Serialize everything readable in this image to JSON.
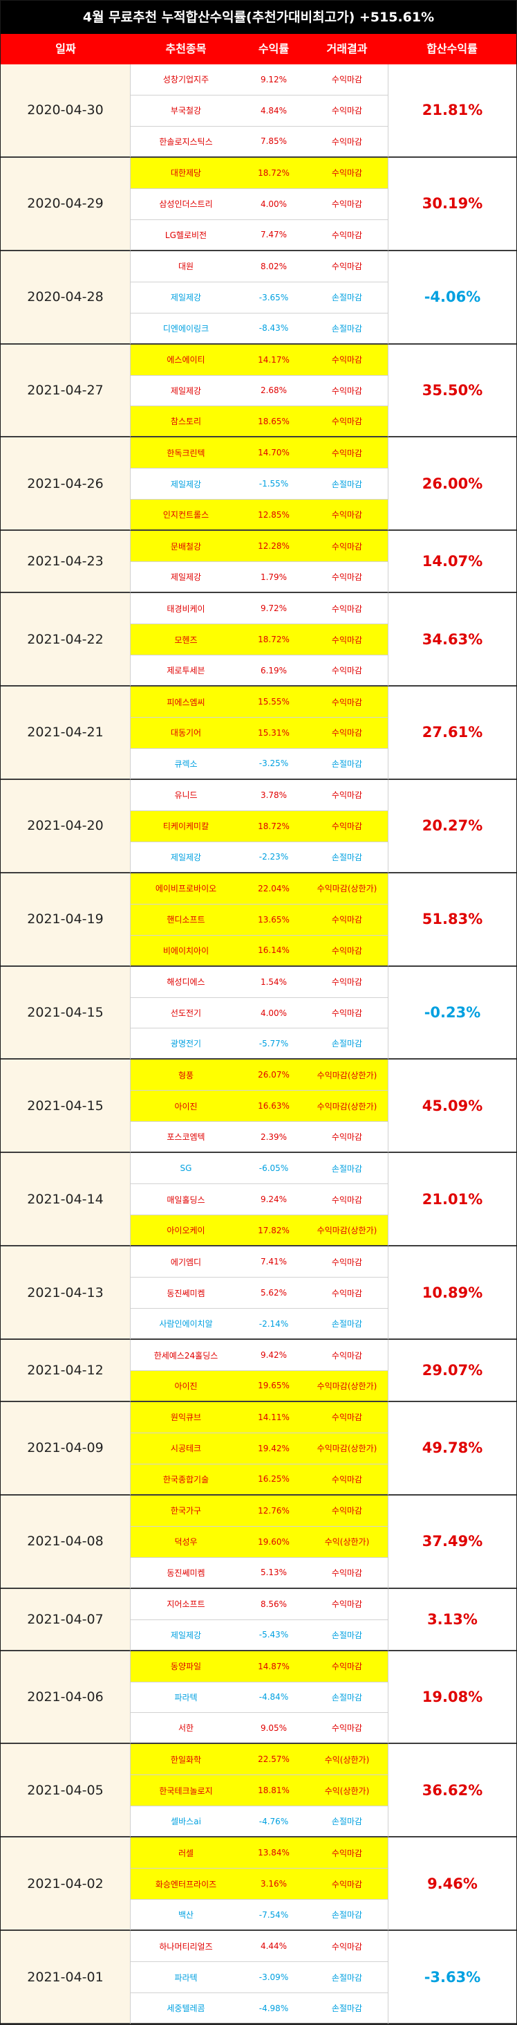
{
  "title": "4월 무료추천 누적합산수익률(추천가대비최고가) +515.61%",
  "headers": [
    "일짜",
    "추천종목",
    "수익률",
    "거래결과",
    "합산수익률"
  ],
  "colors": {
    "red": "#e00000",
    "blue": "#00a0e0",
    "highlight": "#ffff00",
    "header": "#ff0000",
    "date_bg": "#fdf6e6"
  },
  "groups": [
    {
      "date": "2020-04-30",
      "total": "21.81%",
      "total_color": "red",
      "rows": [
        {
          "stock": "성창기업지주",
          "rate": "9.12%",
          "result": "수익마감",
          "color": "red",
          "hl": false
        },
        {
          "stock": "부국철강",
          "rate": "4.84%",
          "result": "수익마감",
          "color": "red",
          "hl": false
        },
        {
          "stock": "한솔로지스틱스",
          "rate": "7.85%",
          "result": "수익마감",
          "color": "red",
          "hl": false
        }
      ]
    },
    {
      "date": "2020-04-29",
      "total": "30.19%",
      "total_color": "red",
      "rows": [
        {
          "stock": "대한제당",
          "rate": "18.72%",
          "result": "수익마감",
          "color": "red",
          "hl": true
        },
        {
          "stock": "삼성인더스트리",
          "rate": "4.00%",
          "result": "수익마감",
          "color": "red",
          "hl": false
        },
        {
          "stock": "LG헬로비전",
          "rate": "7.47%",
          "result": "수익마감",
          "color": "red",
          "hl": false
        }
      ]
    },
    {
      "date": "2020-04-28",
      "total": "-4.06%",
      "total_color": "blue",
      "rows": [
        {
          "stock": "대원",
          "rate": "8.02%",
          "result": "수익마감",
          "color": "red",
          "hl": false
        },
        {
          "stock": "제일제강",
          "rate": "-3.65%",
          "result": "손절마감",
          "color": "blue",
          "hl": false
        },
        {
          "stock": "디엔에이링크",
          "rate": "-8.43%",
          "result": "손절마감",
          "color": "blue",
          "hl": false
        }
      ]
    },
    {
      "date": "2021-04-27",
      "total": "35.50%",
      "total_color": "red",
      "rows": [
        {
          "stock": "에스에이티",
          "rate": "14.17%",
          "result": "수익마감",
          "color": "red",
          "hl": true
        },
        {
          "stock": "제일제강",
          "rate": "2.68%",
          "result": "수익마감",
          "color": "red",
          "hl": false
        },
        {
          "stock": "참스토리",
          "rate": "18.65%",
          "result": "수익마감",
          "color": "red",
          "hl": true
        }
      ]
    },
    {
      "date": "2021-04-26",
      "total": "26.00%",
      "total_color": "red",
      "rows": [
        {
          "stock": "한독크린텍",
          "rate": "14.70%",
          "result": "수익마감",
          "color": "red",
          "hl": true
        },
        {
          "stock": "제일제강",
          "rate": "-1.55%",
          "result": "손절마감",
          "color": "blue",
          "hl": false
        },
        {
          "stock": "인지컨트롤스",
          "rate": "12.85%",
          "result": "수익마감",
          "color": "red",
          "hl": true
        }
      ]
    },
    {
      "date": "2021-04-23",
      "total": "14.07%",
      "total_color": "red",
      "rows": [
        {
          "stock": "문배철강",
          "rate": "12.28%",
          "result": "수익마감",
          "color": "red",
          "hl": true
        },
        {
          "stock": "제일제강",
          "rate": "1.79%",
          "result": "수익마감",
          "color": "red",
          "hl": false
        }
      ]
    },
    {
      "date": "2021-04-22",
      "total": "34.63%",
      "total_color": "red",
      "rows": [
        {
          "stock": "태경비케이",
          "rate": "9.72%",
          "result": "수익마감",
          "color": "red",
          "hl": false
        },
        {
          "stock": "모헨즈",
          "rate": "18.72%",
          "result": "수익마감",
          "color": "red",
          "hl": true
        },
        {
          "stock": "제로투세븐",
          "rate": "6.19%",
          "result": "수익마감",
          "color": "red",
          "hl": false
        }
      ]
    },
    {
      "date": "2021-04-21",
      "total": "27.61%",
      "total_color": "red",
      "rows": [
        {
          "stock": "피에스엠씨",
          "rate": "15.55%",
          "result": "수익마감",
          "color": "red",
          "hl": true
        },
        {
          "stock": "대동기어",
          "rate": "15.31%",
          "result": "수익마감",
          "color": "red",
          "hl": true
        },
        {
          "stock": "큐렉소",
          "rate": "-3.25%",
          "result": "손절마감",
          "color": "blue",
          "hl": false
        }
      ]
    },
    {
      "date": "2021-04-20",
      "total": "20.27%",
      "total_color": "red",
      "rows": [
        {
          "stock": "유니드",
          "rate": "3.78%",
          "result": "수익마감",
          "color": "red",
          "hl": false
        },
        {
          "stock": "티케이케미칼",
          "rate": "18.72%",
          "result": "수익마감",
          "color": "red",
          "hl": true
        },
        {
          "stock": "제일제강",
          "rate": "-2.23%",
          "result": "손절마감",
          "color": "blue",
          "hl": false
        }
      ]
    },
    {
      "date": "2021-04-19",
      "total": "51.83%",
      "total_color": "red",
      "rows": [
        {
          "stock": "에이비프로바이오",
          "rate": "22.04%",
          "result": "수익마감(상한가)",
          "color": "red",
          "hl": true
        },
        {
          "stock": "핸디소프트",
          "rate": "13.65%",
          "result": "수익마감",
          "color": "red",
          "hl": true
        },
        {
          "stock": "비에이치아이",
          "rate": "16.14%",
          "result": "수익마감",
          "color": "red",
          "hl": true
        }
      ]
    },
    {
      "date": "2021-04-15",
      "total": "-0.23%",
      "total_color": "blue",
      "rows": [
        {
          "stock": "해성디에스",
          "rate": "1.54%",
          "result": "수익마감",
          "color": "red",
          "hl": false
        },
        {
          "stock": "선도전기",
          "rate": "4.00%",
          "result": "수익마감",
          "color": "red",
          "hl": false
        },
        {
          "stock": "광명전기",
          "rate": "-5.77%",
          "result": "손절마감",
          "color": "blue",
          "hl": false
        }
      ]
    },
    {
      "date": "2021-04-15",
      "total": "45.09%",
      "total_color": "red",
      "rows": [
        {
          "stock": "형풍",
          "rate": "26.07%",
          "result": "수익마감(상한가)",
          "color": "red",
          "hl": true
        },
        {
          "stock": "아이진",
          "rate": "16.63%",
          "result": "수익마감(상한가)",
          "color": "red",
          "hl": true
        },
        {
          "stock": "포스코엠텍",
          "rate": "2.39%",
          "result": "수익마감",
          "color": "red",
          "hl": false
        }
      ]
    },
    {
      "date": "2021-04-14",
      "total": "21.01%",
      "total_color": "red",
      "rows": [
        {
          "stock": "SG",
          "rate": "-6.05%",
          "result": "손절마감",
          "color": "blue",
          "hl": false
        },
        {
          "stock": "매일홀딩스",
          "rate": "9.24%",
          "result": "수익마감",
          "color": "red",
          "hl": false
        },
        {
          "stock": "아이오케이",
          "rate": "17.82%",
          "result": "수익마감(상한가)",
          "color": "red",
          "hl": true
        }
      ]
    },
    {
      "date": "2021-04-13",
      "total": "10.89%",
      "total_color": "red",
      "rows": [
        {
          "stock": "에기엠디",
          "rate": "7.41%",
          "result": "수익마감",
          "color": "red",
          "hl": false
        },
        {
          "stock": "동진쎄미켐",
          "rate": "5.62%",
          "result": "수익마감",
          "color": "red",
          "hl": false
        },
        {
          "stock": "사람인에이치알",
          "rate": "-2.14%",
          "result": "손절마감",
          "color": "blue",
          "hl": false
        }
      ]
    },
    {
      "date": "2021-04-12",
      "total": "29.07%",
      "total_color": "red",
      "rows": [
        {
          "stock": "한세예스24홀딩스",
          "rate": "9.42%",
          "result": "수익마감",
          "color": "red",
          "hl": false
        },
        {
          "stock": "아이진",
          "rate": "19.65%",
          "result": "수익마감(상한가)",
          "color": "red",
          "hl": true
        }
      ]
    },
    {
      "date": "2021-04-09",
      "total": "49.78%",
      "total_color": "red",
      "rows": [
        {
          "stock": "원익큐브",
          "rate": "14.11%",
          "result": "수익마감",
          "color": "red",
          "hl": true
        },
        {
          "stock": "시공테크",
          "rate": "19.42%",
          "result": "수익마감(상한가)",
          "color": "red",
          "hl": true
        },
        {
          "stock": "한국종합기술",
          "rate": "16.25%",
          "result": "수익마감",
          "color": "red",
          "hl": true
        }
      ]
    },
    {
      "date": "2021-04-08",
      "total": "37.49%",
      "total_color": "red",
      "rows": [
        {
          "stock": "한국가구",
          "rate": "12.76%",
          "result": "수익마감",
          "color": "red",
          "hl": true
        },
        {
          "stock": "덕성우",
          "rate": "19.60%",
          "result": "수익(상한가)",
          "color": "red",
          "hl": true
        },
        {
          "stock": "동진쎄미켐",
          "rate": "5.13%",
          "result": "수익마감",
          "color": "red",
          "hl": false
        }
      ]
    },
    {
      "date": "2021-04-07",
      "total": "3.13%",
      "total_color": "red",
      "rows": [
        {
          "stock": "지어소프트",
          "rate": "8.56%",
          "result": "수익마감",
          "color": "red",
          "hl": false
        },
        {
          "stock": "제일제강",
          "rate": "-5.43%",
          "result": "손절마감",
          "color": "blue",
          "hl": false
        }
      ]
    },
    {
      "date": "2021-04-06",
      "total": "19.08%",
      "total_color": "red",
      "rows": [
        {
          "stock": "동양파일",
          "rate": "14.87%",
          "result": "수익마감",
          "color": "red",
          "hl": true
        },
        {
          "stock": "파라텍",
          "rate": "-4.84%",
          "result": "손절마감",
          "color": "blue",
          "hl": false
        },
        {
          "stock": "서한",
          "rate": "9.05%",
          "result": "수익마감",
          "color": "red",
          "hl": false
        }
      ]
    },
    {
      "date": "2021-04-05",
      "total": "36.62%",
      "total_color": "red",
      "rows": [
        {
          "stock": "한일화학",
          "rate": "22.57%",
          "result": "수익(상한가)",
          "color": "red",
          "hl": true
        },
        {
          "stock": "한국테크놀로지",
          "rate": "18.81%",
          "result": "수익(상한가)",
          "color": "red",
          "hl": true
        },
        {
          "stock": "셀바스ai",
          "rate": "-4.76%",
          "result": "손절마감",
          "color": "blue",
          "hl": false
        }
      ]
    },
    {
      "date": "2021-04-02",
      "total": "9.46%",
      "total_color": "red",
      "rows": [
        {
          "stock": "러셀",
          "rate": "13.84%",
          "result": "수익마감",
          "color": "red",
          "hl": true
        },
        {
          "stock": "화승엔터프라이즈",
          "rate": "3.16%",
          "result": "수익마감",
          "color": "red",
          "hl": true
        },
        {
          "stock": "백산",
          "rate": "-7.54%",
          "result": "손절마감",
          "color": "blue",
          "hl": false
        }
      ]
    },
    {
      "date": "2021-04-01",
      "total": "-3.63%",
      "total_color": "blue",
      "rows": [
        {
          "stock": "하나머티리얼즈",
          "rate": "4.44%",
          "result": "수익마감",
          "color": "red",
          "hl": false
        },
        {
          "stock": "파라텍",
          "rate": "-3.09%",
          "result": "손절마감",
          "color": "blue",
          "hl": false
        },
        {
          "stock": "세중텔레콤",
          "rate": "-4.98%",
          "result": "손절마감",
          "color": "blue",
          "hl": false
        }
      ]
    }
  ]
}
